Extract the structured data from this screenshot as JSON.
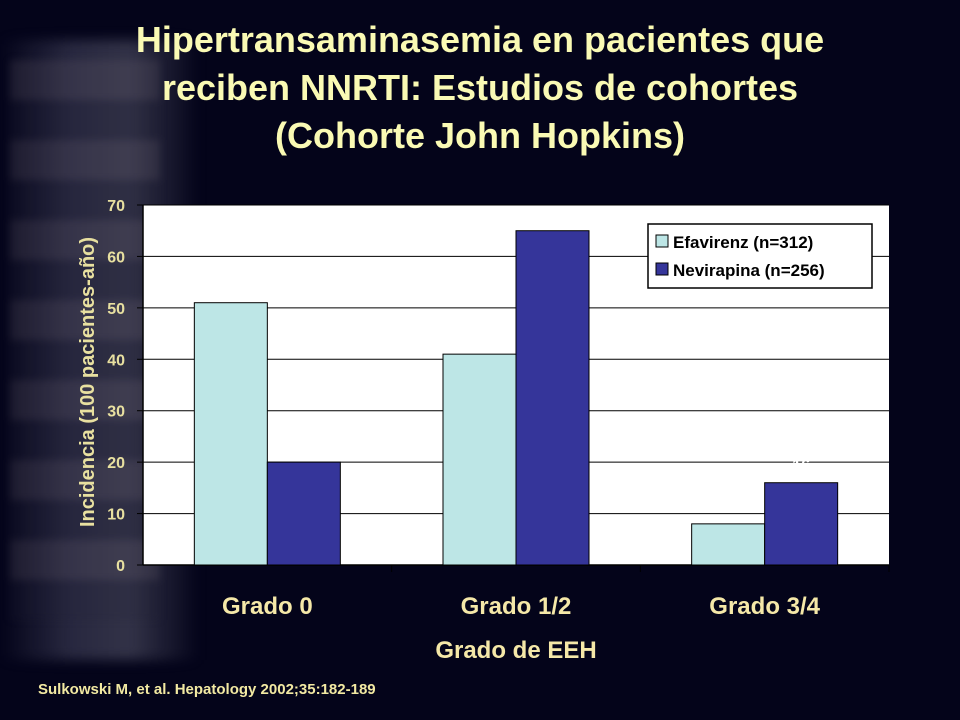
{
  "slide": {
    "title_lines": [
      "Hipertransaminasemia en pacientes que",
      "reciben NNRTI: Estudios de cohortes",
      "(Cohorte John Hopkins)"
    ],
    "citation": "Sulkowski M, et al. Hepatology 2002;35:182-189"
  },
  "chart_data": {
    "type": "bar",
    "categories": [
      "Grado 0",
      "Grado 1/2",
      "Grado 3/4"
    ],
    "series": [
      {
        "name": "Efavirenz (n=312)",
        "values": [
          51,
          41,
          8
        ],
        "color": "#bde6e6"
      },
      {
        "name": "Nevirapina (n=256)",
        "values": [
          20,
          65,
          16
        ],
        "color": "#35359a"
      }
    ],
    "xlabel": "Grado de EEH",
    "ylabel": "Incidencia (100 pacientes-año)",
    "ylim": [
      0,
      70
    ],
    "yticks": [
      0,
      10,
      20,
      30,
      40,
      50,
      60,
      70
    ],
    "grid": true,
    "legend": "top-right",
    "colors": {
      "plot_bg": "#ffffff",
      "axis_text": "#e8e0a0",
      "label_text": "#ffffff",
      "category_text": "#f5e8a8"
    }
  }
}
